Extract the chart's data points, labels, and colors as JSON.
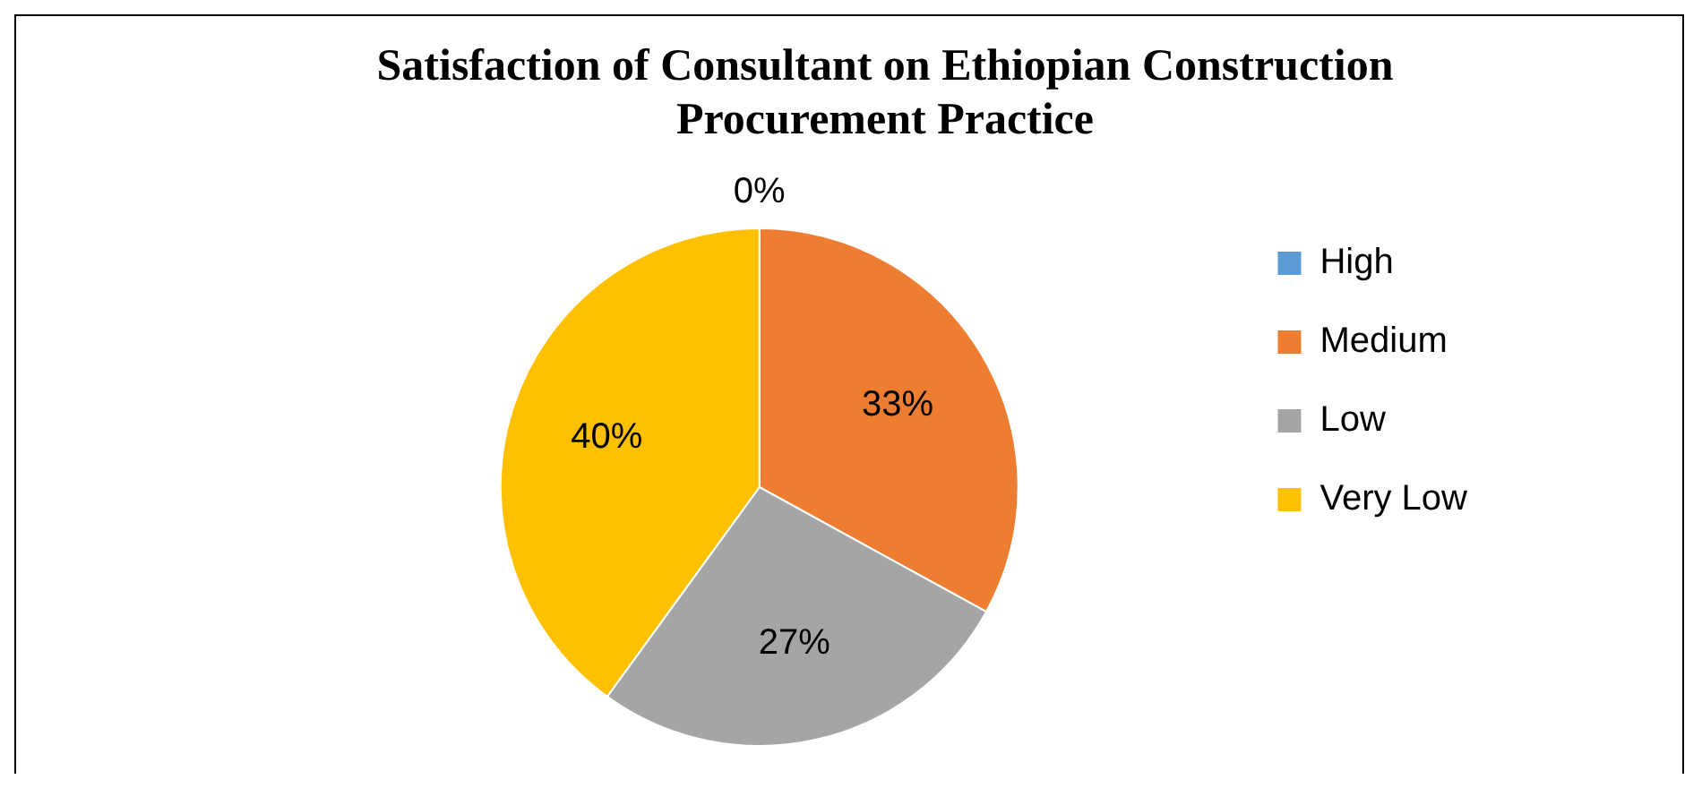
{
  "chart_data": {
    "type": "pie",
    "title": "Satisfaction of Consultant on Ethiopian Construction Procurement Practice",
    "categories": [
      "High",
      "Medium",
      "Low",
      "Very Low"
    ],
    "values": [
      0,
      33,
      27,
      40
    ],
    "colors": [
      "#5b9bd5",
      "#ed7d31",
      "#a5a5a5",
      "#ffc000"
    ],
    "value_labels": [
      "0%",
      "33%",
      "27%",
      "40%"
    ],
    "legend": "right"
  }
}
